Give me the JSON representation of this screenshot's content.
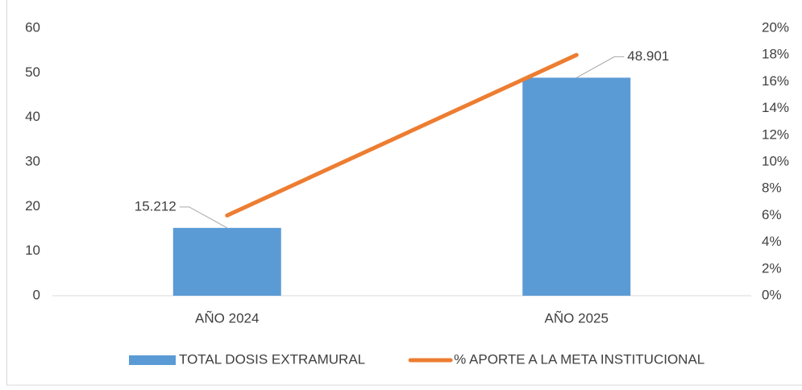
{
  "chart_data": {
    "type": "bar",
    "categories": [
      "AÑO 2024",
      "AÑO 2025"
    ],
    "series": [
      {
        "name": "TOTAL DOSIS EXTRAMURAL",
        "type": "bar",
        "color": "#5b9bd5",
        "values": [
          15.212,
          48.901
        ]
      },
      {
        "name": "% APORTE A LA META INSTITUCIONAL",
        "type": "line",
        "color": "#ed7d31",
        "axis": "y2",
        "values": [
          6,
          18
        ]
      }
    ],
    "ylim": [
      0,
      60
    ],
    "yticks": [
      0,
      10,
      20,
      30,
      40,
      50,
      60
    ],
    "y2lim": [
      0,
      20
    ],
    "y2ticks": [
      {
        "value": 0,
        "label": "0%"
      },
      {
        "value": 2,
        "label": "2%"
      },
      {
        "value": 4,
        "label": "4%"
      },
      {
        "value": 6,
        "label": "6%"
      },
      {
        "value": 8,
        "label": "8%"
      },
      {
        "value": 10,
        "label": "10%"
      },
      {
        "value": 12,
        "label": "12%"
      },
      {
        "value": 14,
        "label": "14%"
      },
      {
        "value": 16,
        "label": "16%"
      },
      {
        "value": 18,
        "label": "18%"
      },
      {
        "value": 20,
        "label": "20%"
      }
    ],
    "legend": "bottom"
  }
}
